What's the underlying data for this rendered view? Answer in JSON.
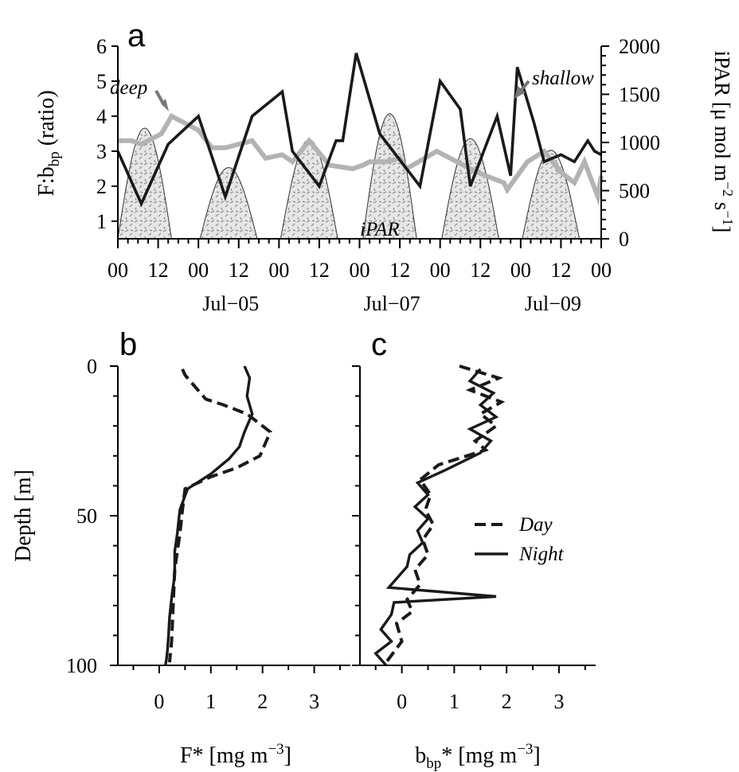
{
  "chart_data": [
    {
      "panel_label": "a",
      "type": "line",
      "x_tick_labels": [
        "00",
        "12",
        "00",
        "12",
        "00",
        "12",
        "00",
        "12",
        "00",
        "12",
        "00",
        "12",
        "00"
      ],
      "x_date_labels": [
        "Jul−05",
        "Jul−07",
        "Jul−09"
      ],
      "xlim": [
        0,
        144
      ],
      "ylabel_left": "F:b",
      "ylabel_left_sub": "bp",
      "ylabel_left_tail": " (ratio)",
      "ylim_left": [
        0.5,
        6
      ],
      "yticks_left": [
        1,
        2,
        3,
        4,
        5,
        6
      ],
      "ylabel_right": "iPAR [μ mol m",
      "ylabel_right_sup1": "−2",
      "ylabel_right_mid": " s",
      "ylabel_right_sup2": "−1",
      "ylabel_right_tail": "]",
      "ylim_right": [
        0,
        2000
      ],
      "yticks_right": [
        0,
        500,
        1000,
        1500,
        2000
      ],
      "annotations": {
        "deep": "deep",
        "shallow": "shallow",
        "ipar": "iPAR"
      },
      "colors": {
        "shallow": "#1a1a1a",
        "deep": "#b3b3b3",
        "ipar_fill": "#e6e6e6"
      },
      "series": [
        {
          "name": "shallow",
          "x": [
            0,
            7,
            15,
            24,
            32,
            40,
            49,
            52,
            60,
            65,
            67,
            71,
            78,
            90,
            96,
            102,
            105,
            113,
            117,
            119,
            124,
            127,
            132,
            136,
            140,
            142,
            144
          ],
          "y": [
            3.0,
            1.5,
            3.2,
            4.0,
            1.7,
            4.0,
            4.7,
            3.0,
            2.0,
            3.3,
            3.3,
            5.8,
            3.5,
            2.0,
            5.0,
            4.2,
            2.0,
            4.0,
            2.3,
            5.4,
            3.8,
            2.7,
            2.9,
            2.7,
            3.3,
            3.0,
            2.9
          ]
        },
        {
          "name": "deep",
          "x": [
            0,
            4,
            7,
            13,
            16,
            24,
            28,
            32,
            40,
            44,
            49,
            52,
            57,
            63,
            70,
            73,
            75,
            80,
            84,
            86,
            95,
            103,
            107,
            115,
            116,
            122,
            127,
            132,
            136,
            139,
            143,
            144
          ],
          "y": [
            3.3,
            3.3,
            3.2,
            3.5,
            4.0,
            3.6,
            3.1,
            3.1,
            3.3,
            2.8,
            2.9,
            2.7,
            3.3,
            2.6,
            2.5,
            2.6,
            2.7,
            2.7,
            2.8,
            2.5,
            3.0,
            2.6,
            2.4,
            2.1,
            1.9,
            2.7,
            3.0,
            2.4,
            2.1,
            2.7,
            1.7,
            2.3
          ]
        }
      ],
      "ipar_peaks": [
        {
          "center": 8,
          "half_width": 8,
          "peak": 1150
        },
        {
          "center": 33,
          "half_width": 8.5,
          "peak": 740
        },
        {
          "center": 57,
          "half_width": 8.5,
          "peak": 1030
        },
        {
          "center": 81,
          "half_width": 8,
          "peak": 1300
        },
        {
          "center": 105,
          "half_width": 8.5,
          "peak": 1040
        },
        {
          "center": 129,
          "half_width": 8.5,
          "peak": 920
        }
      ]
    },
    {
      "panel_label": "b",
      "type": "line",
      "xlabel": "F* [mg m",
      "xlabel_sup": "−3",
      "xlabel_tail": "]",
      "ylabel": "Depth [m]",
      "xlim": [
        -0.8,
        3.7
      ],
      "xticks": [
        0,
        1,
        2,
        3
      ],
      "ylim": [
        100,
        0
      ],
      "yticks": [
        0,
        50,
        100
      ],
      "series": [
        {
          "name": "Day",
          "x": [
            0.45,
            0.5,
            0.7,
            0.9,
            1.25,
            1.7,
            2.15,
            1.95,
            1.5,
            1.0,
            0.5,
            0.45,
            0.4,
            0.35,
            0.3,
            0.28,
            0.26,
            0.24,
            0.2
          ],
          "y": [
            1,
            3,
            7,
            11,
            13,
            16,
            22,
            30,
            34,
            37,
            41,
            48,
            56,
            62,
            68,
            76,
            84,
            92,
            99
          ]
        },
        {
          "name": "Night",
          "x": [
            1.65,
            1.75,
            1.7,
            1.8,
            1.65,
            1.55,
            1.35,
            1.0,
            0.55,
            0.4,
            0.35,
            0.3,
            0.3,
            0.25,
            0.2,
            0.18,
            0.16,
            0.14,
            0.12
          ],
          "y": [
            0,
            4,
            10,
            16,
            22,
            27,
            31,
            36,
            41,
            48,
            56,
            62,
            70,
            76,
            84,
            90,
            95,
            98,
            100
          ]
        }
      ]
    },
    {
      "panel_label": "c",
      "type": "line",
      "xlabel": "b",
      "xlabel_sub": "bp",
      "xlabel_mid": "* [mg m",
      "xlabel_sup": "−3",
      "xlabel_tail": "]",
      "xlim": [
        -0.8,
        3.7
      ],
      "xticks": [
        0,
        1,
        2,
        3
      ],
      "ylim": [
        100,
        0
      ],
      "yticks": [
        0,
        50,
        100
      ],
      "legend": [
        {
          "label": "Day",
          "style": "dashed"
        },
        {
          "label": "Night",
          "style": "solid"
        }
      ],
      "series": [
        {
          "name": "Day",
          "x": [
            1.1,
            1.85,
            1.3,
            1.9,
            1.5,
            1.8,
            1.4,
            1.6,
            0.7,
            0.35,
            0.55,
            0.45,
            0.6,
            0.4,
            0.5,
            0.25,
            0.35,
            0.1,
            0.2,
            -0.1,
            0.0,
            -0.3
          ],
          "y": [
            0,
            4,
            8,
            12,
            16,
            20,
            25,
            28,
            33,
            38,
            43,
            48,
            53,
            58,
            63,
            68,
            73,
            78,
            82,
            86,
            92,
            99
          ]
        },
        {
          "name": "Night",
          "x": [
            1.5,
            1.3,
            1.75,
            1.5,
            1.8,
            1.3,
            1.7,
            1.5,
            0.8,
            0.3,
            0.5,
            0.25,
            0.5,
            0.3,
            0.4,
            0.15,
            0.1,
            -0.25,
            1.8,
            -0.15,
            -0.2,
            -0.4,
            -0.2,
            -0.5,
            -0.3
          ],
          "y": [
            1,
            5,
            9,
            13,
            17,
            21,
            25,
            29,
            35,
            39,
            43,
            47,
            51,
            55,
            59,
            63,
            67,
            74,
            77,
            79,
            83,
            88,
            92,
            96,
            100
          ]
        }
      ]
    }
  ]
}
